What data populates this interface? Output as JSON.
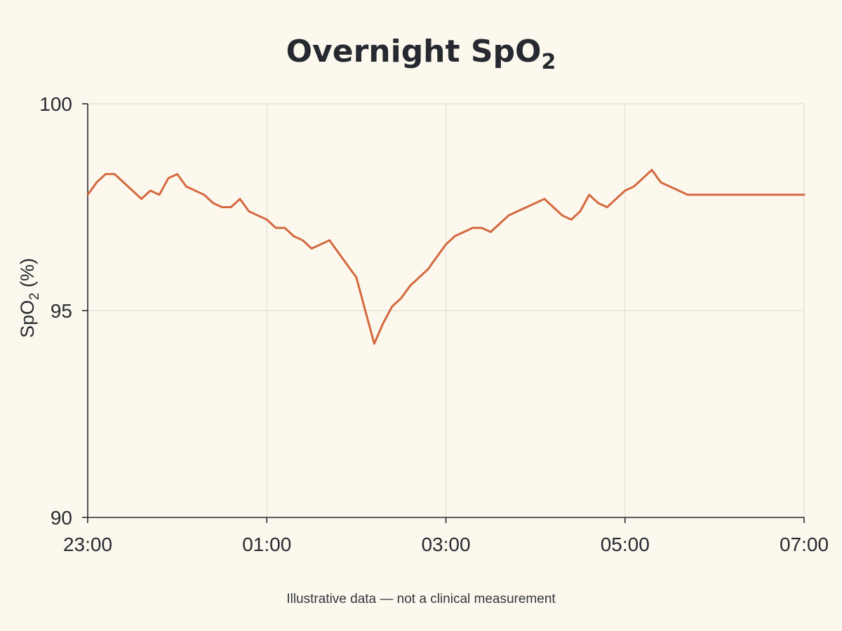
{
  "chart_data": {
    "type": "line",
    "title": "Overnight SpO",
    "title_subscript": "2",
    "ylabel": "SpO",
    "ylabel_subscript": "2",
    "ylabel_suffix": " (%)",
    "xlabel": "",
    "ylim": [
      90,
      100
    ],
    "yticks": [
      "100",
      "95",
      "90"
    ],
    "xticks": [
      "23:00",
      "01:00",
      "03:00",
      "05:00",
      "07:00"
    ],
    "grid": true,
    "footnote": "Illustrative data — not a clinical measurement",
    "colors": {
      "line": "#d4693f",
      "background": "#fcf8ee",
      "grid": "#e2ded4",
      "text": "#262a30"
    },
    "series": [
      {
        "x_unit": "hours after 23:00",
        "x": [
          0,
          0.1,
          0.2,
          0.3,
          0.4,
          0.5,
          0.6,
          0.7,
          0.8,
          0.9,
          1.0,
          1.1,
          1.2,
          1.3,
          1.4,
          1.5,
          1.6,
          1.7,
          1.8,
          1.9,
          2.0,
          2.1,
          2.2,
          2.3,
          2.4,
          2.5,
          2.6,
          2.7,
          2.8,
          2.9,
          3.0,
          3.1,
          3.2,
          3.3,
          3.4,
          3.5,
          3.6,
          3.7,
          3.8,
          3.9,
          4.0,
          4.1,
          4.2,
          4.3,
          4.4,
          4.5,
          4.6,
          4.7,
          4.8,
          4.9,
          5.0,
          5.1,
          5.2,
          5.3,
          5.4,
          5.5,
          5.6,
          5.7,
          5.8,
          5.9,
          6.0,
          6.1,
          6.2,
          6.3,
          6.4,
          6.5,
          6.6,
          6.7,
          6.8,
          6.9,
          7.0,
          7.1,
          7.2,
          7.3,
          7.4,
          7.5,
          7.6,
          7.7,
          7.8,
          7.9,
          8.0
        ],
        "y": [
          97.8,
          98.1,
          98.3,
          98.3,
          98.1,
          97.9,
          97.7,
          97.9,
          97.8,
          98.2,
          98.3,
          98.0,
          97.9,
          97.8,
          97.6,
          97.5,
          97.5,
          97.7,
          97.4,
          97.3,
          97.2,
          97.0,
          97.0,
          96.8,
          96.7,
          96.5,
          96.6,
          96.7,
          96.4,
          96.1,
          95.8,
          95.0,
          94.2,
          94.7,
          95.1,
          95.3,
          95.6,
          95.8,
          96.0,
          96.3,
          96.6,
          96.8,
          96.9,
          97.0,
          97.0,
          96.9,
          97.1,
          97.3,
          97.4,
          97.5,
          97.6,
          97.7,
          97.5,
          97.3,
          97.2,
          97.4,
          97.8,
          97.6,
          97.5,
          97.7,
          97.9,
          98.0,
          98.2,
          98.4,
          98.1,
          98.0,
          97.9,
          97.8,
          97.8,
          97.8,
          97.8,
          97.8,
          97.8,
          97.8,
          97.8,
          97.8,
          97.8,
          97.8,
          97.8,
          97.8,
          97.8
        ]
      }
    ]
  }
}
